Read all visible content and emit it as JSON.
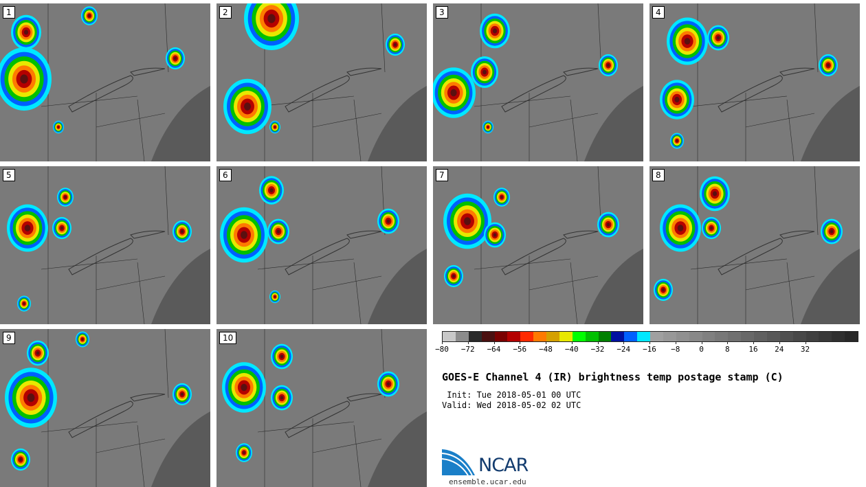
{
  "panels": [
    {
      "id": "1"
    },
    {
      "id": "2"
    },
    {
      "id": "3"
    },
    {
      "id": "4"
    },
    {
      "id": "5"
    },
    {
      "id": "6"
    },
    {
      "id": "7"
    },
    {
      "id": "8"
    },
    {
      "id": "9"
    },
    {
      "id": "10"
    }
  ],
  "colorbar": {
    "colors": [
      "#c8c8c8",
      "#8c8c8c",
      "#2a2a2a",
      "#4a1010",
      "#7a0000",
      "#b40000",
      "#ff2a00",
      "#ff7a00",
      "#d4a000",
      "#e8e800",
      "#00ff00",
      "#00c000",
      "#008000",
      "#0010a0",
      "#0060ff",
      "#00e8ff",
      "#a0a0a0",
      "#989898",
      "#909090",
      "#888888",
      "#808080",
      "#787878",
      "#707070",
      "#686868",
      "#606060",
      "#585858",
      "#505050",
      "#484848",
      "#404040",
      "#383838",
      "#303030",
      "#282828"
    ],
    "tick_labels": [
      "−80",
      "−72",
      "−64",
      "−56",
      "−48",
      "−40",
      "−32",
      "−24",
      "−16",
      "−8",
      "0",
      "8",
      "16",
      "24",
      "32"
    ]
  },
  "title": "GOES-E Channel 4 (IR) brightness temp postage stamp (C)",
  "init_text": " Init: Tue 2018-05-01 00 UTC",
  "valid_text": "Valid: Wed 2018-05-02 02 UTC",
  "logo": {
    "text": "NCAR",
    "site": "ensemble.ucar.edu"
  }
}
